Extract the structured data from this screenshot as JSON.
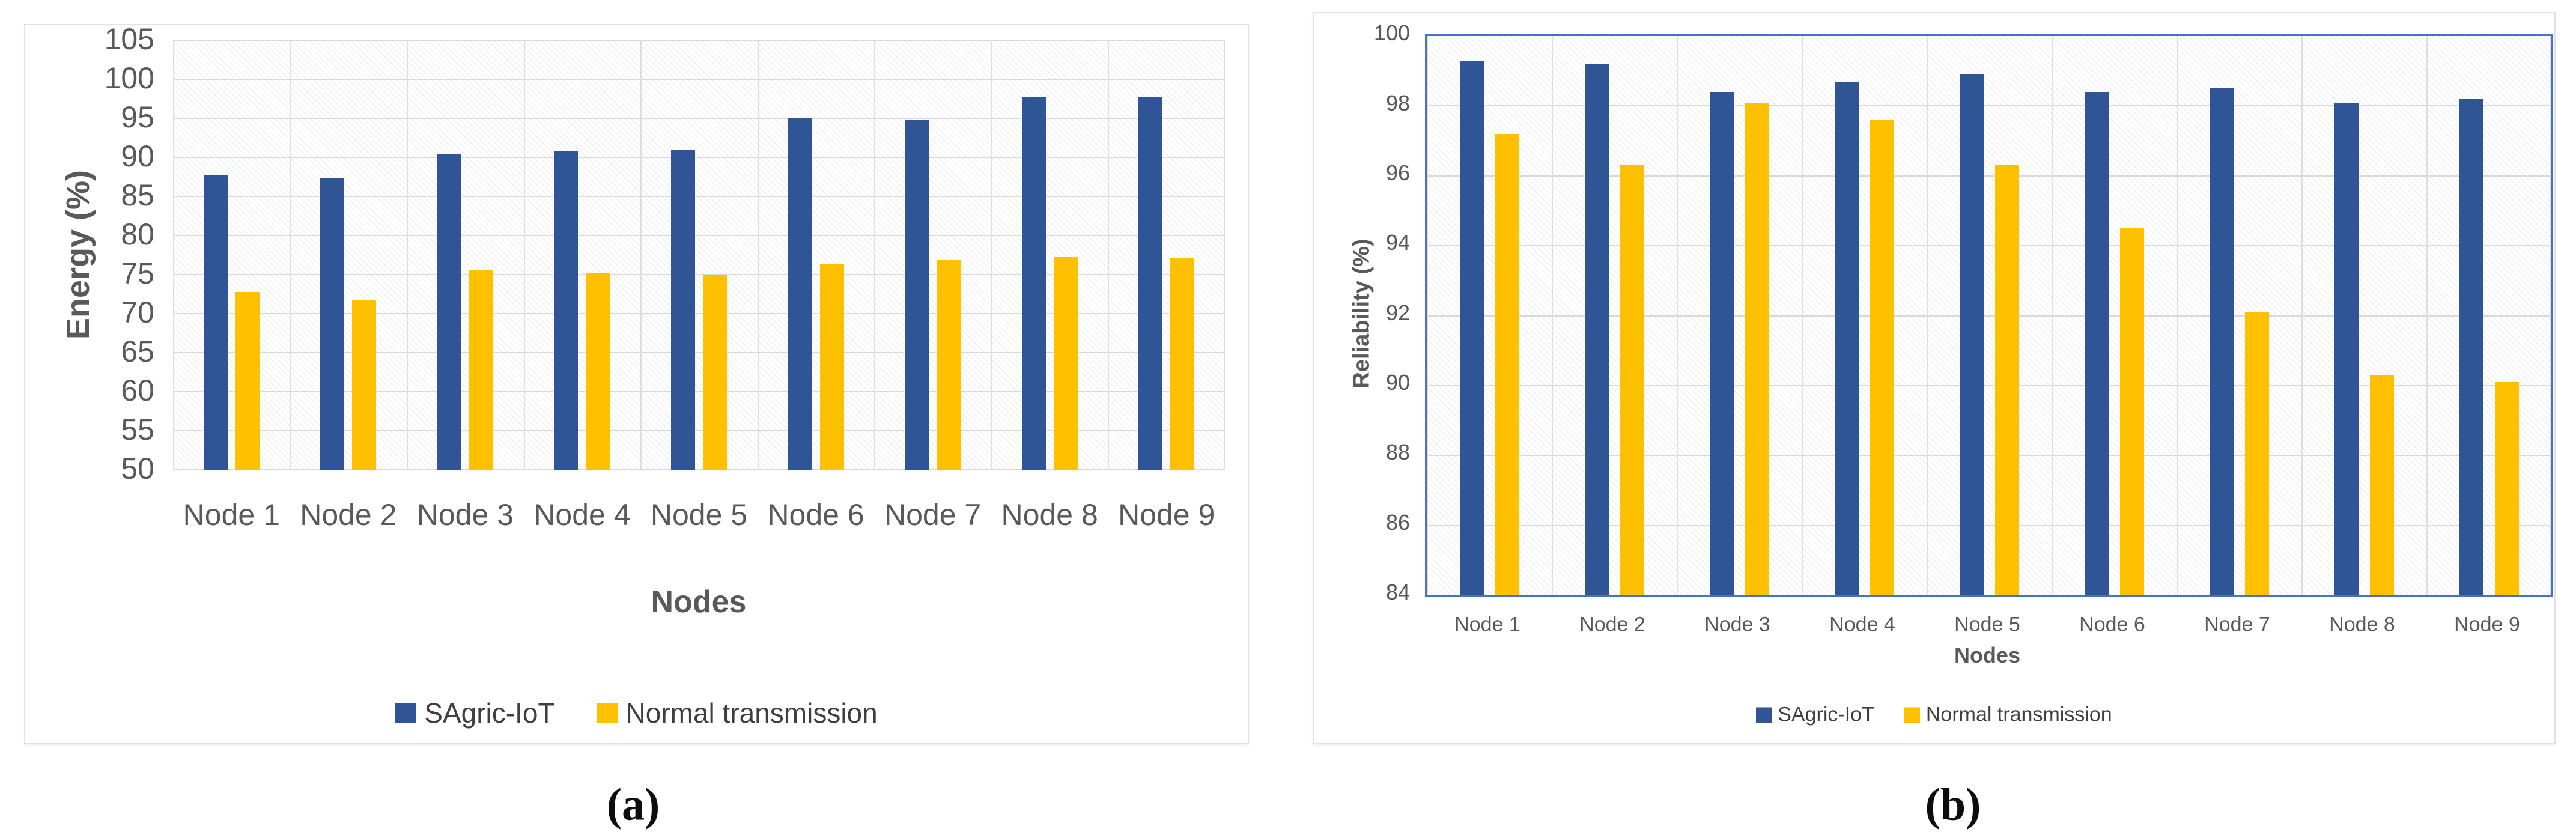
{
  "colors": {
    "series_blue": "#2F5597",
    "series_yellow": "#FFC000",
    "grid": "#D9D9D9",
    "plot_border_b": "#4472C4",
    "tick_text": "#595959",
    "legend_text": "#3F3F3F"
  },
  "captions": [
    "(a)",
    "(b)"
  ],
  "chart_data": [
    {
      "type": "bar",
      "title": "",
      "categories": [
        "Node 1",
        "Node 2",
        "Node 3",
        "Node 4",
        "Node 5",
        "Node 6",
        "Node 7",
        "Node 8",
        "Node 9"
      ],
      "series": [
        {
          "name": "SAgric-IoT",
          "color": "#2F5597",
          "values": [
            87.8,
            87.3,
            90.4,
            90.8,
            91.0,
            95.0,
            94.8,
            97.8,
            97.7
          ]
        },
        {
          "name": "Normal transmission",
          "color": "#FFC000",
          "values": [
            72.8,
            71.7,
            75.6,
            75.2,
            75.0,
            76.4,
            76.9,
            77.3,
            77.1
          ]
        }
      ],
      "xlabel": "Nodes",
      "ylabel": "Energy (%)",
      "ylim": [
        50,
        105
      ],
      "ytick_step": 5,
      "grid": true,
      "legend_position": "bottom"
    },
    {
      "type": "bar",
      "title": "",
      "categories": [
        "Node 1",
        "Node 2",
        "Node 3",
        "Node 4",
        "Node 5",
        "Node 6",
        "Node 7",
        "Node 8",
        "Node 9"
      ],
      "series": [
        {
          "name": "SAgric-IoT",
          "color": "#2F5597",
          "values": [
            99.3,
            99.2,
            98.4,
            98.7,
            98.9,
            98.4,
            98.5,
            98.1,
            98.2
          ]
        },
        {
          "name": "Normal transmission",
          "color": "#FFC000",
          "values": [
            97.2,
            96.3,
            98.1,
            97.6,
            96.3,
            94.5,
            92.1,
            90.3,
            90.1
          ]
        }
      ],
      "xlabel": "Nodes",
      "ylabel": "Reliability (%)",
      "ylim": [
        84,
        100
      ],
      "ytick_step": 2,
      "grid": true,
      "legend_position": "bottom"
    }
  ]
}
